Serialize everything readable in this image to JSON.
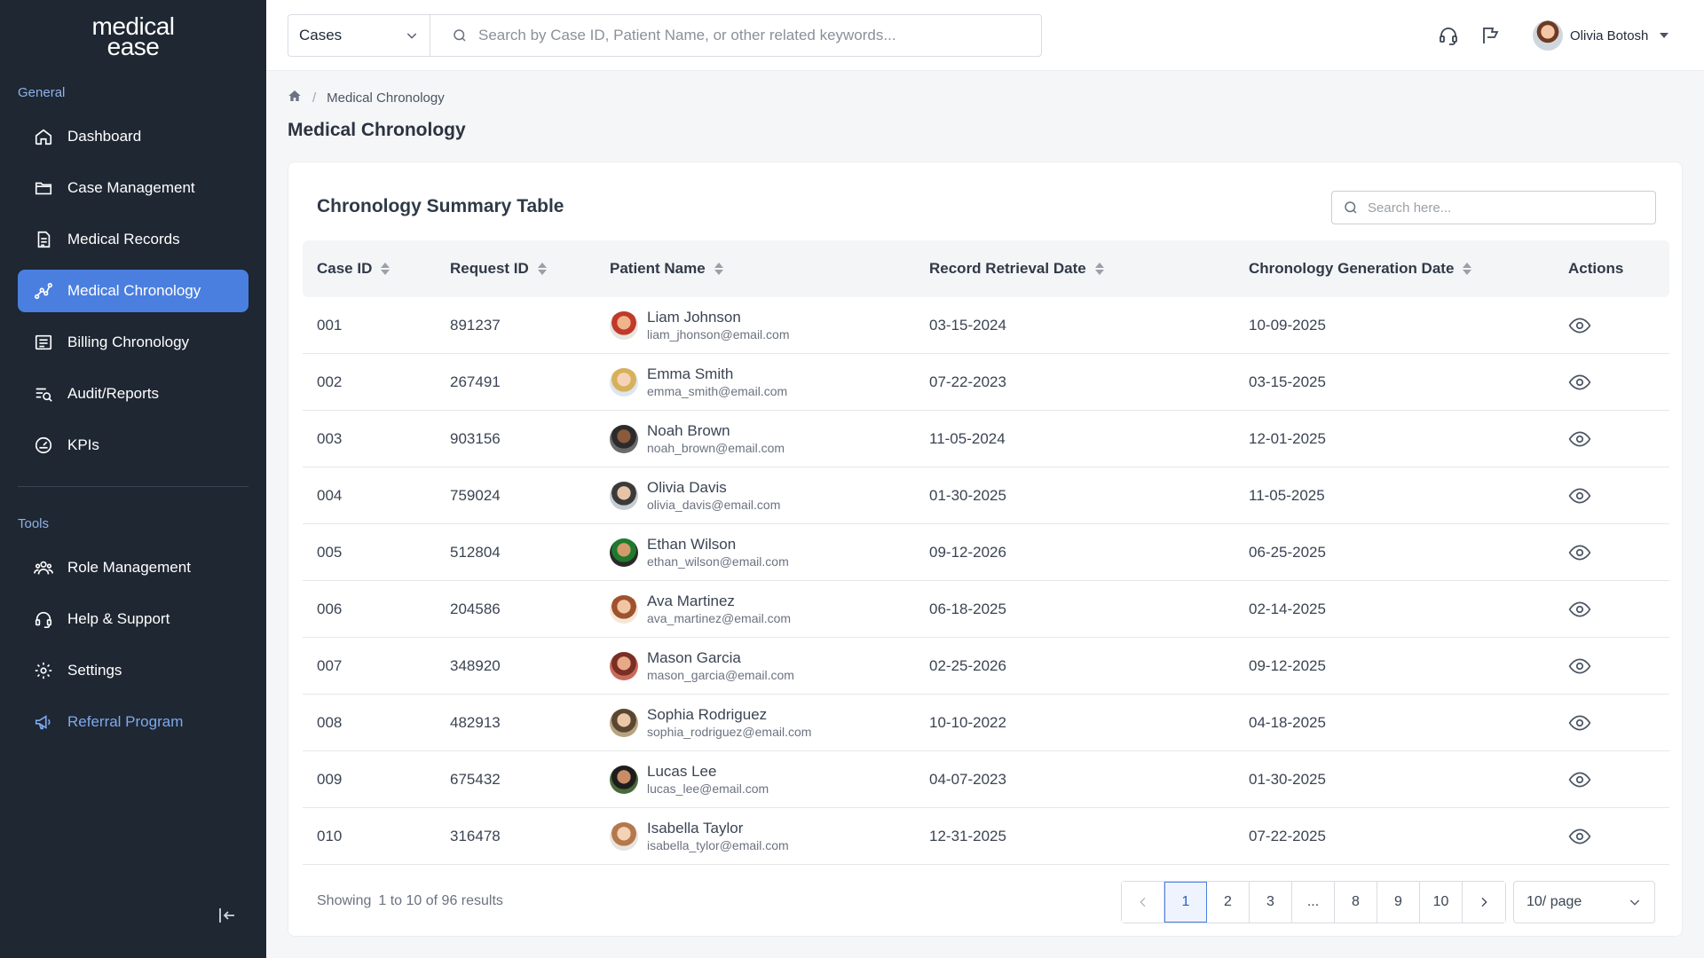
{
  "sidebar": {
    "logo_line1": "medical",
    "logo_line2": "ease",
    "general_label": "General",
    "tools_label": "Tools",
    "items": [
      {
        "label": "Dashboard",
        "icon": "home-icon"
      },
      {
        "label": "Case Management",
        "icon": "folder-icon"
      },
      {
        "label": "Medical Records",
        "icon": "document-icon"
      },
      {
        "label": "Medical Chronology",
        "icon": "chart-line-icon",
        "active": true
      },
      {
        "label": "Billing Chronology",
        "icon": "billing-icon"
      },
      {
        "label": "Audit/Reports",
        "icon": "report-icon"
      },
      {
        "label": "KPIs",
        "icon": "gauge-icon"
      }
    ],
    "tools": [
      {
        "label": "Role Management",
        "icon": "users-icon"
      },
      {
        "label": "Help & Support",
        "icon": "headset-icon"
      },
      {
        "label": "Settings",
        "icon": "gear-icon"
      },
      {
        "label": "Referral Program",
        "icon": "megaphone-icon"
      }
    ]
  },
  "topbar": {
    "scope_select": "Cases",
    "search_placeholder": "Search by Case ID, Patient Name, or other related keywords...",
    "user_name": "Olivia Botosh"
  },
  "breadcrumb": {
    "current": "Medical Chronology"
  },
  "page_title": "Medical Chronology",
  "table": {
    "title": "Chronology Summary Table",
    "search_placeholder": "Search here...",
    "columns": [
      "Case ID",
      "Request ID",
      "Patient Name",
      "Record Retrieval Date",
      "Chronology Generation Date",
      "Actions"
    ],
    "rows": [
      {
        "case_id": "001",
        "request_id": "891237",
        "name": "Liam Johnson",
        "email": "liam_jhonson@email.com",
        "retrieval": "03-15-2024",
        "generation": "10-09-2025"
      },
      {
        "case_id": "002",
        "request_id": "267491",
        "name": "Emma Smith",
        "email": "emma_smith@email.com",
        "retrieval": "07-22-2023",
        "generation": "03-15-2025"
      },
      {
        "case_id": "003",
        "request_id": "903156",
        "name": "Noah Brown",
        "email": "noah_brown@email.com",
        "retrieval": "11-05-2024",
        "generation": "12-01-2025"
      },
      {
        "case_id": "004",
        "request_id": "759024",
        "name": "Olivia Davis",
        "email": "olivia_davis@email.com",
        "retrieval": "01-30-2025",
        "generation": "11-05-2025"
      },
      {
        "case_id": "005",
        "request_id": "512804",
        "name": "Ethan Wilson",
        "email": "ethan_wilson@email.com",
        "retrieval": "09-12-2026",
        "generation": "06-25-2025"
      },
      {
        "case_id": "006",
        "request_id": "204586",
        "name": "Ava Martinez",
        "email": "ava_martinez@email.com",
        "retrieval": "06-18-2025",
        "generation": "02-14-2025"
      },
      {
        "case_id": "007",
        "request_id": "348920",
        "name": "Mason Garcia",
        "email": "mason_garcia@email.com",
        "retrieval": "02-25-2026",
        "generation": "09-12-2025"
      },
      {
        "case_id": "008",
        "request_id": "482913",
        "name": "Sophia Rodriguez",
        "email": "sophia_rodriguez@email.com",
        "retrieval": "10-10-2022",
        "generation": "04-18-2025"
      },
      {
        "case_id": "009",
        "request_id": "675432",
        "name": "Lucas Lee",
        "email": "lucas_lee@email.com",
        "retrieval": "04-07-2023",
        "generation": "01-30-2025"
      },
      {
        "case_id": "010",
        "request_id": "316478",
        "name": "Isabella Taylor",
        "email": "isabella_tylor@email.com",
        "retrieval": "12-31-2025",
        "generation": "07-22-2025"
      }
    ]
  },
  "footer": {
    "showing_label": "Showing",
    "showing_range": "1 to 10 of 96 results",
    "pages": [
      "1",
      "2",
      "3",
      "...",
      "8",
      "9",
      "10"
    ],
    "current_page": "1",
    "per_page": "10/ page"
  },
  "colors": {
    "sidebar_bg": "#1e2732",
    "accent": "#4a7fe0",
    "referral": "#7fa8ee"
  }
}
